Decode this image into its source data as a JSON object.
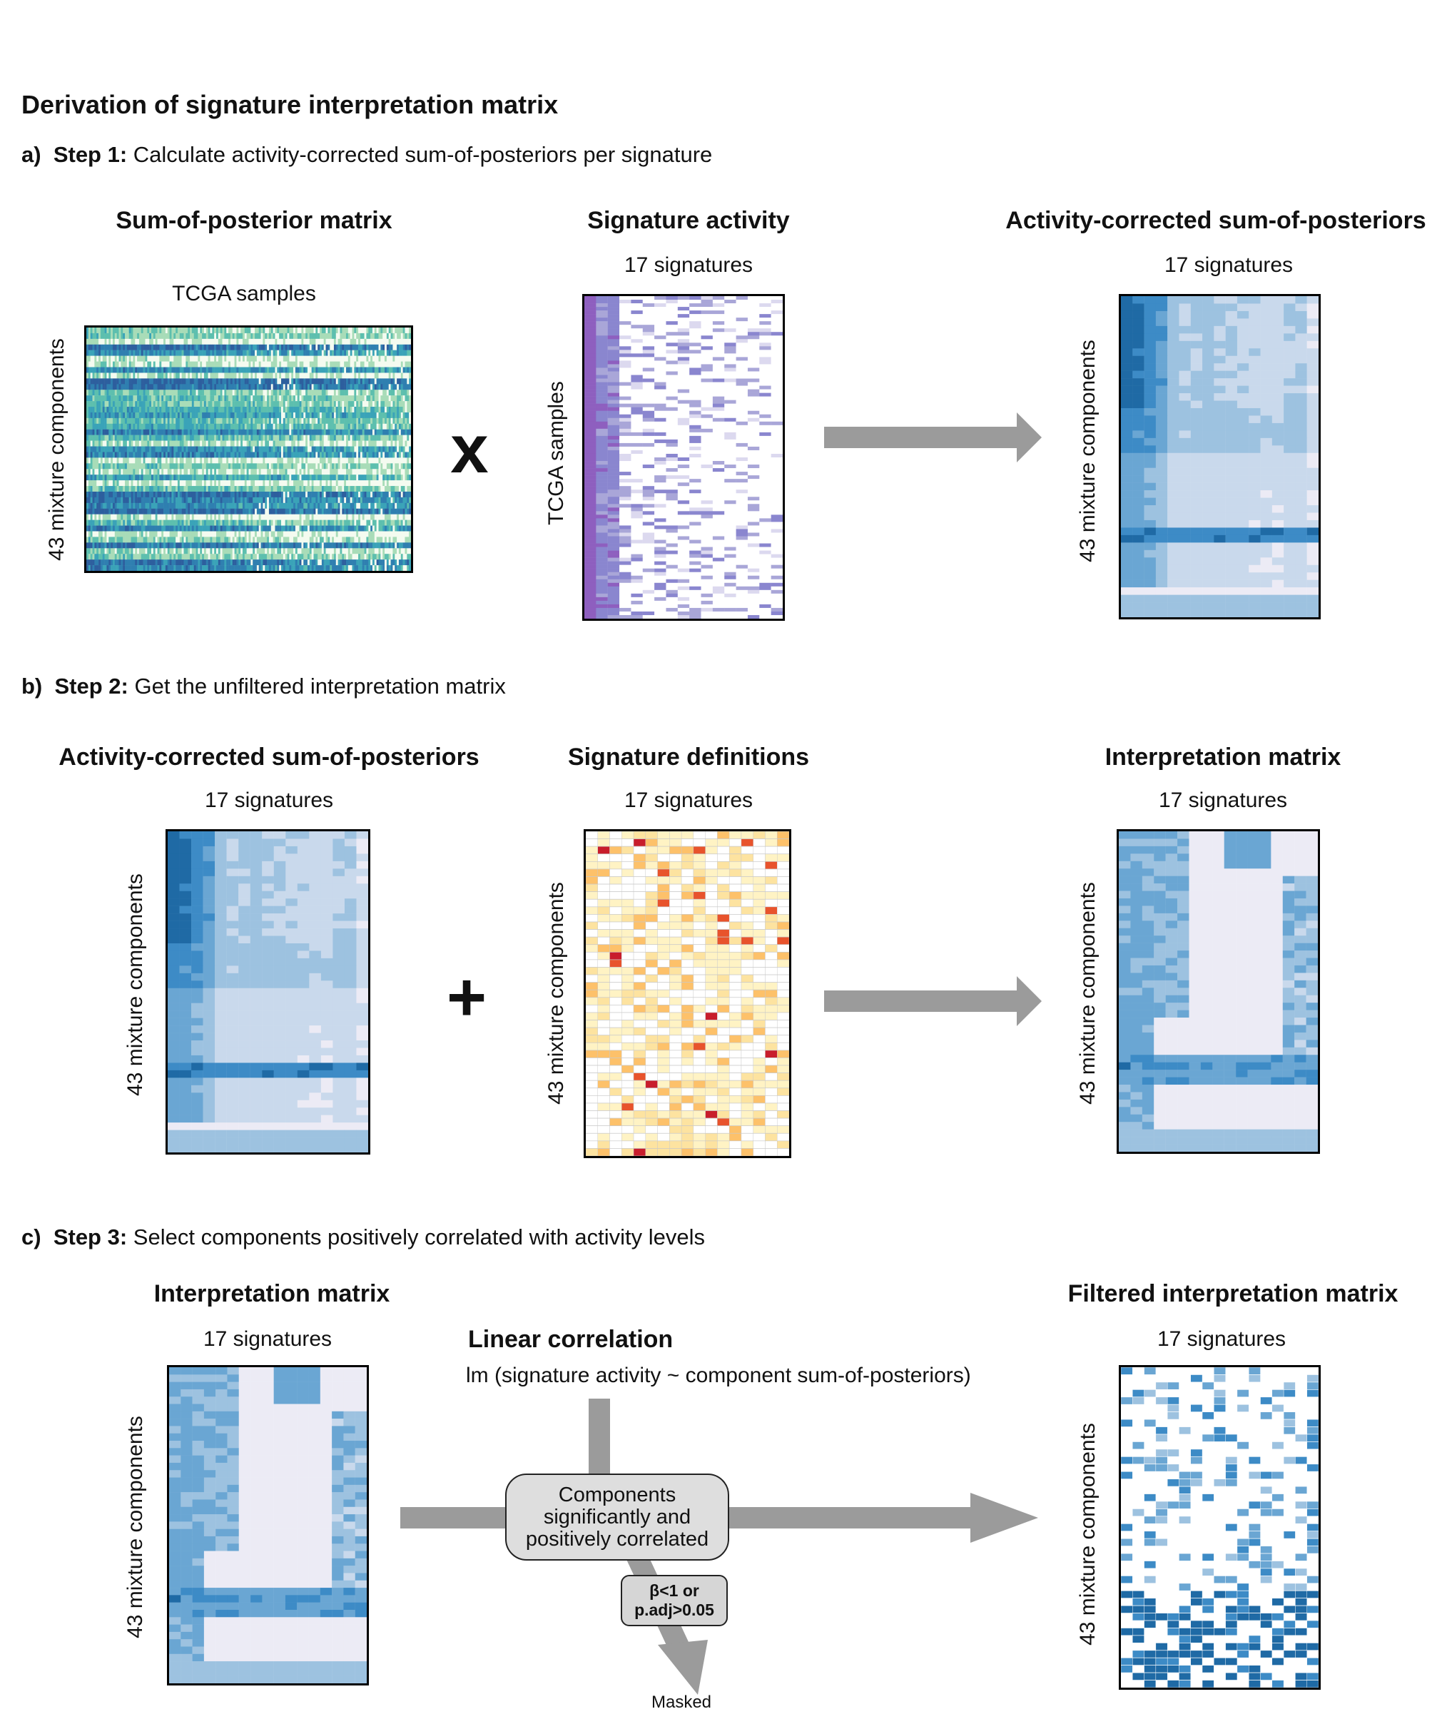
{
  "title": "Derivation of signature interpretation matrix",
  "steps": [
    {
      "letter": "a)",
      "name": "Step 1:",
      "text": "Calculate activity-corrected sum-of-posteriors per signature"
    },
    {
      "letter": "b)",
      "name": "Step 2:",
      "text": "Get the unfiltered interpretation matrix"
    },
    {
      "letter": "c)",
      "name": "Step 3:",
      "text": "Select components positively correlated with activity levels"
    }
  ],
  "panel_a": {
    "sop": {
      "title": "Sum-of-posterior matrix",
      "top_label": "TCGA samples",
      "side_label": "43 mixture components"
    },
    "operator": "x",
    "activity": {
      "title": "Signature activity",
      "top_label": "17 signatures",
      "side_label": "TCGA samples"
    },
    "result": {
      "title": "Activity-corrected sum-of-posteriors",
      "top_label": "17 signatures",
      "side_label": "43 mixture components"
    }
  },
  "panel_b": {
    "input": {
      "title": "Activity-corrected sum-of-posteriors",
      "top_label": "17 signatures",
      "side_label": "43 mixture components"
    },
    "operator": "+",
    "definitions": {
      "title": "Signature definitions",
      "top_label": "17 signatures",
      "side_label": "43 mixture components"
    },
    "result": {
      "title": "Interpretation matrix",
      "top_label": "17 signatures",
      "side_label": "43 mixture components"
    }
  },
  "panel_c": {
    "input": {
      "title": "Interpretation matrix",
      "top_label": "17 signatures",
      "side_label": "43 mixture components"
    },
    "correlation": {
      "title": "Linear correlation",
      "formula": "lm (signature activity ~ component sum-of-posteriors)",
      "box_lines": [
        "Components",
        "significantly and",
        "positively correlated"
      ],
      "criteria_lines": [
        "β<1 or",
        "p.adj>0.05"
      ],
      "masked_label": "Masked"
    },
    "result": {
      "title": "Filtered interpretation matrix",
      "top_label": "17 signatures",
      "side_label": "43 mixture components"
    }
  },
  "colors": {
    "sop_palette": [
      "#f4fbf0",
      "#a8dcb8",
      "#5dbfae",
      "#3aa3b8",
      "#2f7fb0",
      "#2d5f9e"
    ],
    "activity_palette": [
      "#ffffff",
      "#dcd9ef",
      "#a9a6d8",
      "#8a86cf",
      "#8e5fbf"
    ],
    "blue_palette": [
      "#ecebf5",
      "#c9d9ec",
      "#9dc2e0",
      "#6aa6d3",
      "#3d8bc6",
      "#1f6aa5"
    ],
    "orange_palette": [
      "#ffffff",
      "#fff3c4",
      "#fde3a0",
      "#fdc16a",
      "#f89a45",
      "#e8532c",
      "#c81d2c"
    ],
    "arrow": "#9b9b9b"
  }
}
